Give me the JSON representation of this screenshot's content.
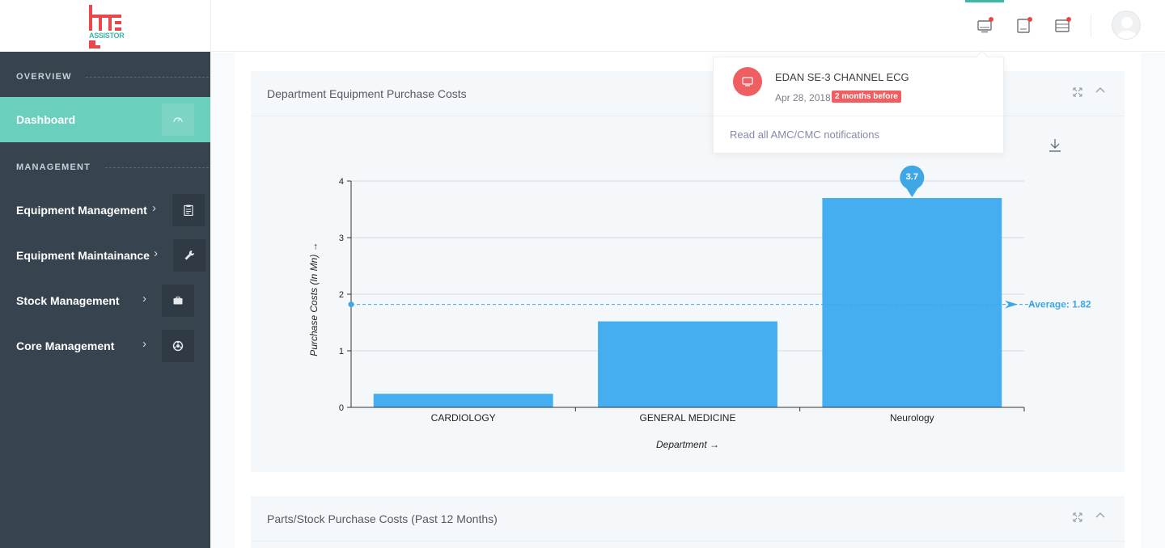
{
  "brand": {
    "logo_text": "ASSISTOR",
    "colors": {
      "teal": "#3cb8a6",
      "red": "#e8474b",
      "sidebar": "#37434f",
      "active": "#6bcfbd",
      "bar": "#44aef1"
    }
  },
  "sidebar": {
    "sections": [
      "OVERVIEW",
      "MANAGEMENT"
    ],
    "active_item": {
      "label": "Dashboard",
      "icon": "speedometer-icon"
    },
    "items": [
      {
        "label": "Equipment Management",
        "icon": "clipboard-icon"
      },
      {
        "label": "Equipment Maintainance",
        "icon": "wrench-icon"
      },
      {
        "label": "Stock Management",
        "icon": "briefcase-icon"
      },
      {
        "label": "Core Management",
        "icon": "settings-icon"
      }
    ]
  },
  "topbar": {
    "icons": [
      "monitor-notification-icon",
      "device-notification-icon",
      "server-notification-icon"
    ],
    "avatar": "user-avatar"
  },
  "notifications": {
    "item_title": "EDAN SE-3 CHANNEL ECG",
    "item_date": "Apr 28, 2018",
    "item_badge": "2 months before",
    "footer_link": "Read all AMC/CMC notifications"
  },
  "cards": [
    {
      "title": "Department Equipment Purchase Costs"
    },
    {
      "title": "Parts/Stock Purchase Costs (Past 12 Months)"
    }
  ],
  "chart_data": {
    "type": "bar",
    "categories": [
      "CARDIOLOGY",
      "GENERAL MEDICINE",
      "Neurology"
    ],
    "values": [
      0.24,
      1.52,
      3.7
    ],
    "xlabel": "Department →",
    "ylabel": "Purchase Costs (In Mn) →",
    "ylim": [
      0,
      4
    ],
    "yticks": [
      0,
      1,
      2,
      3,
      4
    ],
    "grid": true,
    "average": {
      "value": 1.82,
      "label": "Average: 1.82"
    },
    "max_marker": {
      "label": "3.7"
    }
  }
}
